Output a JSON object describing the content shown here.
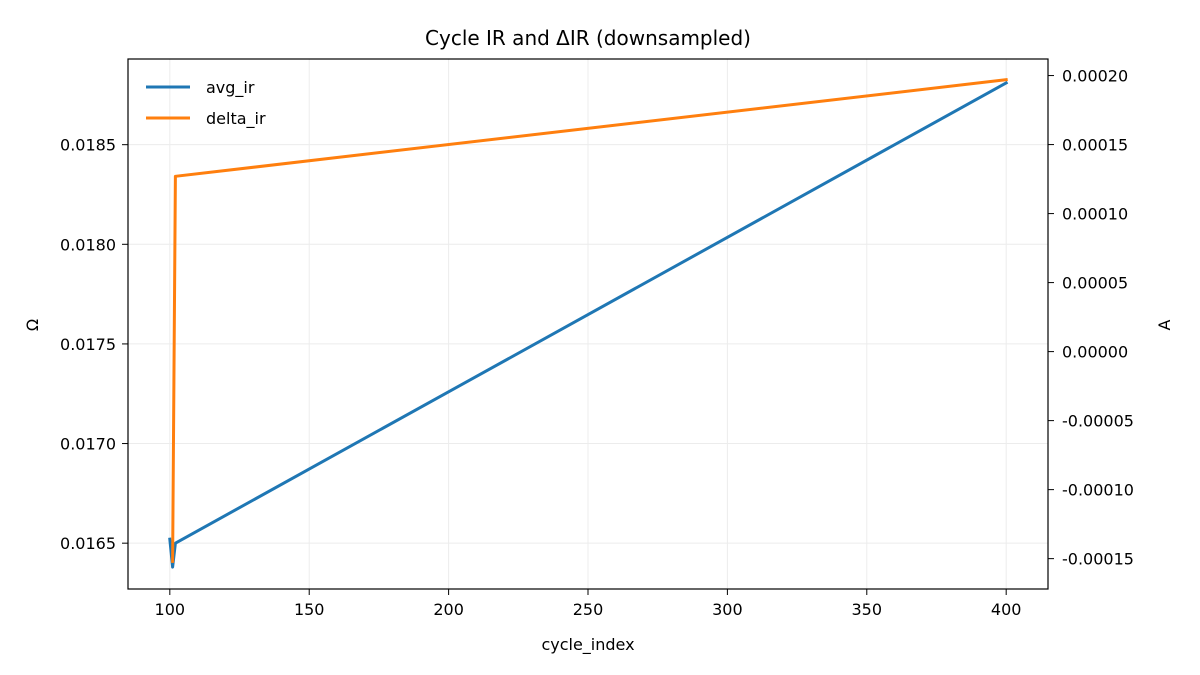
{
  "chart_data": {
    "type": "line",
    "title": "Cycle IR and ΔIR (downsampled)",
    "xlabel": "cycle_index",
    "ylabel_left": "Ω",
    "ylabel_right": "A",
    "xlim": [
      85,
      415
    ],
    "ylim_left": [
      0.01627,
      0.01893
    ],
    "ylim_right": [
      -0.000172,
      0.000212
    ],
    "x_ticks": [
      100,
      150,
      200,
      250,
      300,
      350,
      400
    ],
    "x_tick_labels": [
      "100",
      "150",
      "200",
      "250",
      "300",
      "350",
      "400"
    ],
    "y_left_ticks": [
      0.0165,
      0.017,
      0.0175,
      0.018,
      0.0185
    ],
    "y_left_tick_labels": [
      "0.0165",
      "0.0170",
      "0.0175",
      "0.0180",
      "0.0185"
    ],
    "y_right_ticks": [
      -0.00015,
      -0.0001,
      -5e-05,
      0,
      5e-05,
      0.0001,
      0.00015,
      0.0002
    ],
    "y_right_tick_labels": [
      "-0.00015",
      "-0.00010",
      "-0.00005",
      "0.00000",
      "0.00005",
      "0.00010",
      "0.00015",
      "0.00020"
    ],
    "grid": true,
    "legend_position": "top-left",
    "series": [
      {
        "name": "avg_ir",
        "axis": "left",
        "color": "#1f77b4",
        "x": [
          100,
          101,
          102,
          400
        ],
        "y": [
          0.01652,
          0.01638,
          0.0165,
          0.01881
        ]
      },
      {
        "name": "delta_ir",
        "axis": "right",
        "color": "#ff7f0e",
        "x": [
          101,
          102,
          400
        ],
        "y": [
          -0.000152,
          0.000127,
          0.000197
        ]
      }
    ]
  }
}
